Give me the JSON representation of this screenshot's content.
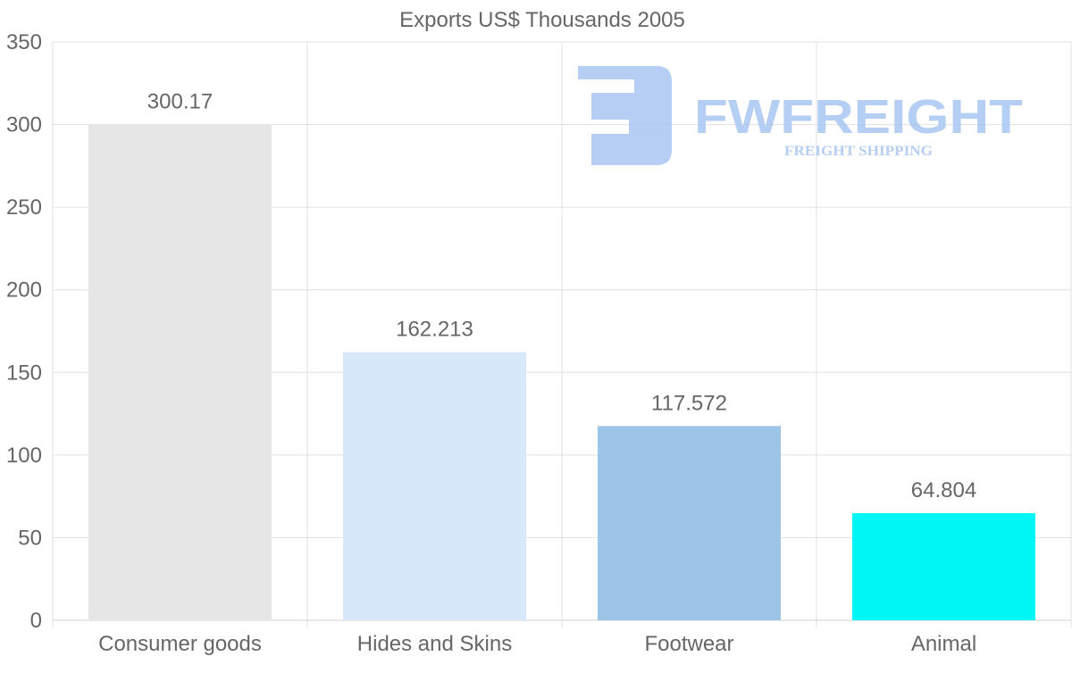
{
  "chart_data": {
    "type": "bar",
    "title": "Exports US$ Thousands 2005",
    "categories": [
      "Consumer goods",
      "Hides and Skins",
      "Footwear",
      "Animal"
    ],
    "values": [
      300.17,
      162.213,
      117.572,
      64.804
    ],
    "value_labels": [
      "300.17",
      "162.213",
      "117.572",
      "64.804"
    ],
    "colors": [
      "#e6e6e6",
      "#d6e8f9",
      "#9cc4e6",
      "#00f5f5"
    ],
    "ylim": [
      0,
      350
    ],
    "yticks": [
      0,
      50,
      100,
      150,
      200,
      250,
      300,
      350
    ],
    "xlabel": "",
    "ylabel": "",
    "grid": true,
    "legend": "none"
  },
  "watermark": {
    "brand": "FWFREIGHT",
    "tagline": "FREIGHT SHIPPING",
    "color": "#a9c6f2"
  }
}
